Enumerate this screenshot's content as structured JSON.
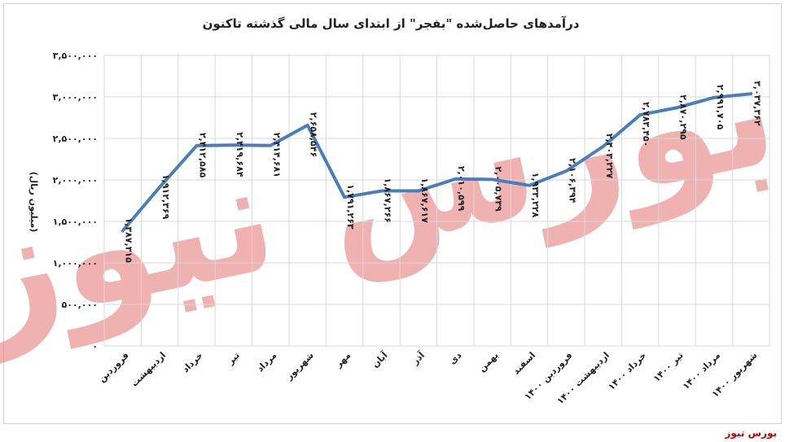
{
  "chart_data": {
    "type": "line",
    "title": "درآمدهای حاصل‌شده \"بفجر\" از ابتدای سال مالی گذشته تاکنون",
    "ylabel": "(میلیون ریال)",
    "xlabel": "",
    "ylim": [
      0,
      3500000
    ],
    "y_ticks": [
      "۰",
      "۵۰۰,۰۰۰",
      "۱,۰۰۰,۰۰۰",
      "۱,۵۰۰,۰۰۰",
      "۲,۰۰۰,۰۰۰",
      "۲,۵۰۰,۰۰۰",
      "۳,۰۰۰,۰۰۰",
      "۳,۵۰۰,۰۰۰"
    ],
    "y_tick_values": [
      0,
      500000,
      1000000,
      1500000,
      2000000,
      2500000,
      3000000,
      3500000
    ],
    "grid": true,
    "line_color": "#4a7ebb",
    "categories": [
      "فروردین",
      "اردیبهشت",
      "خرداد",
      "تیر",
      "مرداد",
      "شهریور",
      "مهر",
      "آبان",
      "آذر",
      "دی",
      "بهمن",
      "اسفند",
      "فروردین ۱۴۰۰",
      "اردیبهشت ۱۴۰۰",
      "خرداد ۱۴۰۰",
      "تیر ۱۴۰۰",
      "مرداد ۱۴۰۰",
      "شهریور ۱۴۰۰"
    ],
    "values": [
      1387315,
      1912369,
      2412585,
      2419684,
      2414681,
      2658546,
      1791263,
      1867266,
      1867617,
      2010599,
      2005739,
      1933228,
      2106394,
      2403227,
      2783450,
      2870295,
      2991705,
      3037362
    ],
    "data_labels": [
      "۱,۳۸۷,۳۱۵",
      "۱,۹۱۲,۳۶۹",
      "۲,۴۱۲,۵۸۵",
      "۲,۴۱۹,۶۸۴",
      "۲,۴۱۴,۶۸۱",
      "۲,۶۵۸,۵۴۶",
      "۱,۷۹۱,۲۶۳",
      "۱,۸۶۷,۲۶۶",
      "۱,۸۶۷,۶۱۷",
      "۲,۰۱۰,۵۹۹",
      "۲,۰۰۵,۷۳۹",
      "۱,۹۳۳,۲۲۸",
      "۲,۱۰۶,۳۹۴",
      "۲,۴۰۳,۲۲۷",
      "۲,۷۸۳,۴۵۰",
      "۲,۸۷۰,۲۹۵",
      "۲,۹۹۱,۷۰۵",
      "۳,۰۳۷,۳۶۲"
    ]
  },
  "watermark": {
    "text": "بورس نیوز",
    "color": "#e07070"
  },
  "source_label": "بورس نیوز"
}
